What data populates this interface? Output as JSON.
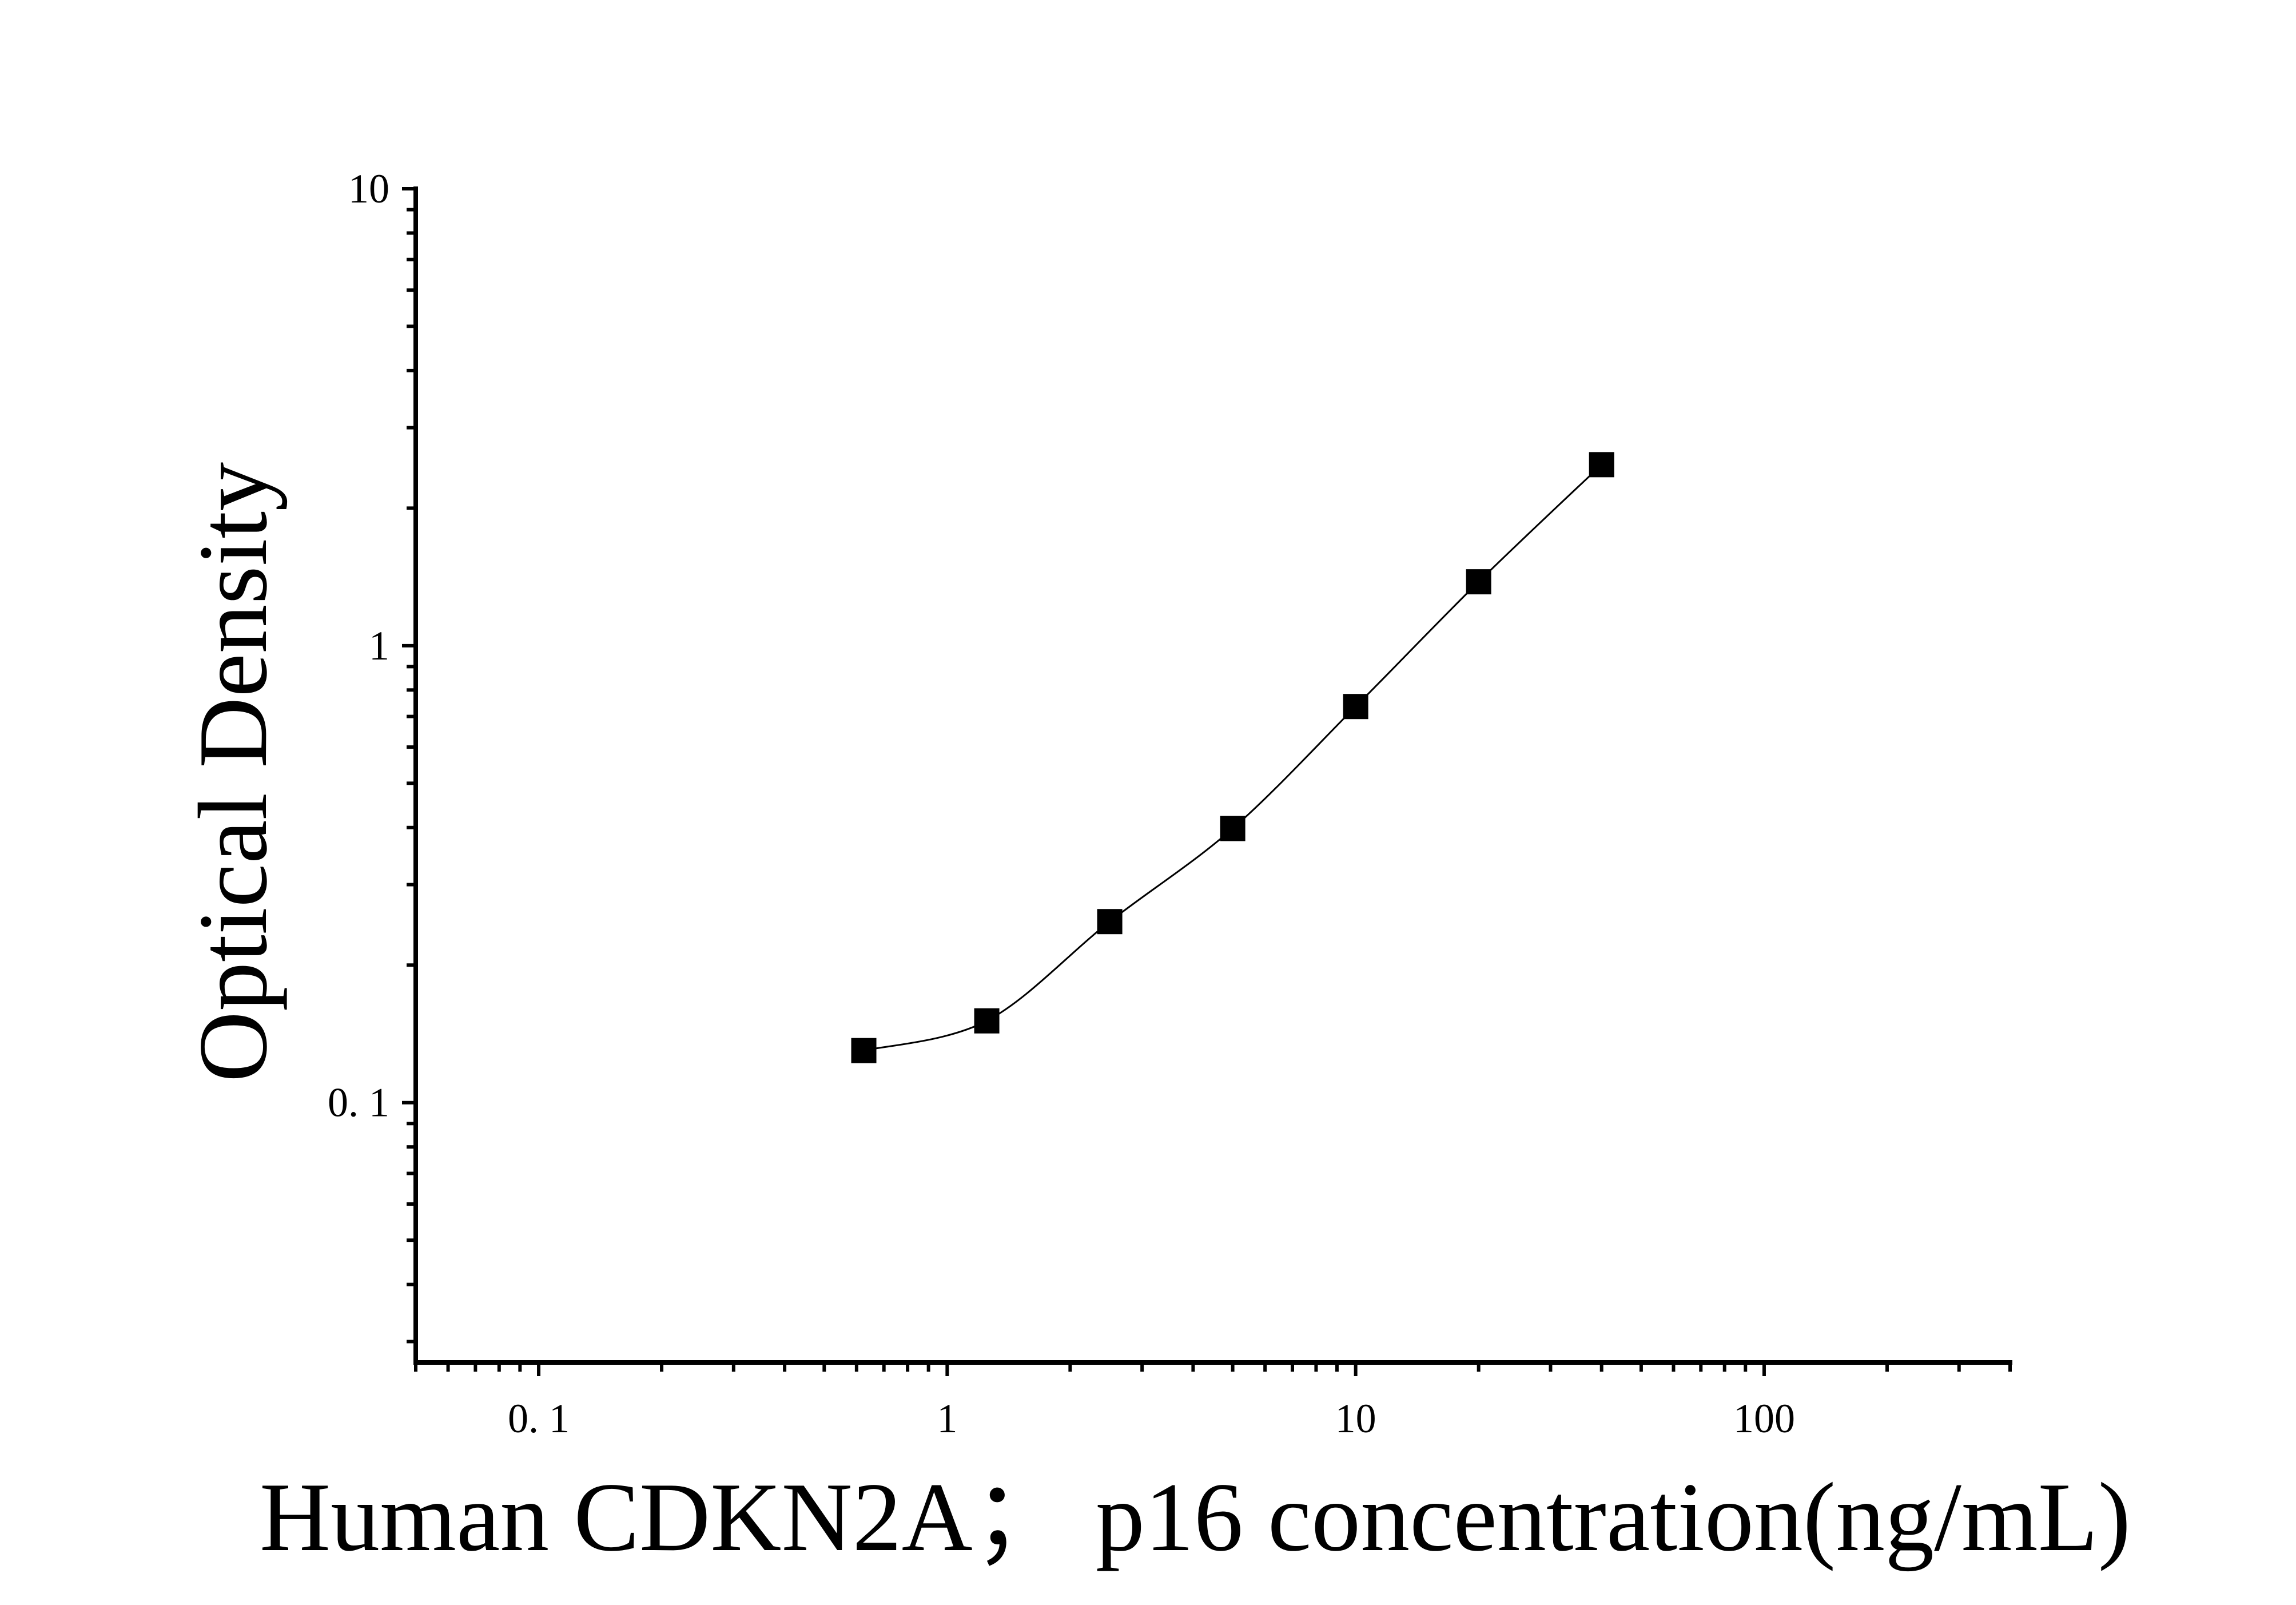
{
  "chart_data": {
    "type": "scatter",
    "xlabel": "Human CDKN2A； p16 concentration(ng/mL)",
    "ylabel": "Optical Density",
    "x_scale": "log",
    "y_scale": "log",
    "xlim": [
      0.05,
      400
    ],
    "ylim": [
      0.027,
      10
    ],
    "x_ticks": [
      {
        "value": 0.1,
        "label": "0. 1"
      },
      {
        "value": 1,
        "label": "1"
      },
      {
        "value": 10,
        "label": "10"
      },
      {
        "value": 100,
        "label": "100"
      }
    ],
    "y_ticks": [
      {
        "value": 0.1,
        "label": "0. 1"
      },
      {
        "value": 1,
        "label": "1"
      },
      {
        "value": 10,
        "label": "10"
      }
    ],
    "grid": false,
    "marker": "square",
    "marker_color": "#000000",
    "line_color": "#000000",
    "series": [
      {
        "x": [
          0.625,
          1.25,
          2.5,
          5,
          10,
          20,
          40
        ],
        "y": [
          0.13,
          0.151,
          0.249,
          0.398,
          0.736,
          1.38,
          2.49
        ]
      }
    ]
  }
}
